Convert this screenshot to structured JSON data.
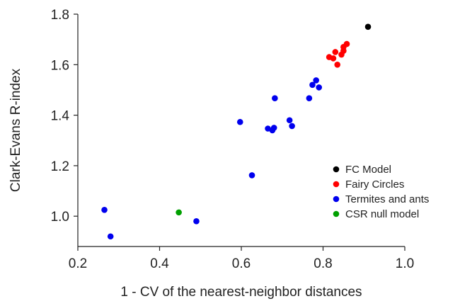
{
  "chart_data": {
    "type": "scatter",
    "xlabel": "1 - CV of the nearest-neighbor distances",
    "ylabel": "Clark-Evans R-index",
    "xlim": [
      0.2,
      1.0
    ],
    "ylim": [
      0.88,
      1.8
    ],
    "xticks": [
      "0.2",
      "0.4",
      "0.6",
      "0.8",
      "1.0"
    ],
    "yticks": [
      "1.0",
      "1.2",
      "1.4",
      "1.6",
      "1.8"
    ],
    "grid": false,
    "legend_position": "right",
    "series": [
      {
        "name": "FC Model",
        "color": "#000000",
        "points": [
          [
            0.91,
            1.75
          ]
        ]
      },
      {
        "name": "Fairy Circles",
        "color": "#ff0000",
        "points": [
          [
            0.815,
            1.63
          ],
          [
            0.825,
            1.625
          ],
          [
            0.83,
            1.65
          ],
          [
            0.835,
            1.6
          ],
          [
            0.845,
            1.64
          ],
          [
            0.85,
            1.655
          ],
          [
            0.85,
            1.67
          ],
          [
            0.858,
            1.682
          ]
        ]
      },
      {
        "name": "Termites and ants",
        "color": "#0000ee",
        "points": [
          [
            0.265,
            1.025
          ],
          [
            0.28,
            0.92
          ],
          [
            0.49,
            0.98
          ],
          [
            0.597,
            1.373
          ],
          [
            0.626,
            1.162
          ],
          [
            0.665,
            1.347
          ],
          [
            0.676,
            1.34
          ],
          [
            0.68,
            1.35
          ],
          [
            0.682,
            1.467
          ],
          [
            0.718,
            1.38
          ],
          [
            0.724,
            1.357
          ],
          [
            0.766,
            1.467
          ],
          [
            0.774,
            1.52
          ],
          [
            0.783,
            1.538
          ],
          [
            0.79,
            1.51
          ]
        ]
      },
      {
        "name": "CSR null model",
        "color": "#00a000",
        "points": [
          [
            0.447,
            1.015
          ]
        ]
      }
    ]
  }
}
